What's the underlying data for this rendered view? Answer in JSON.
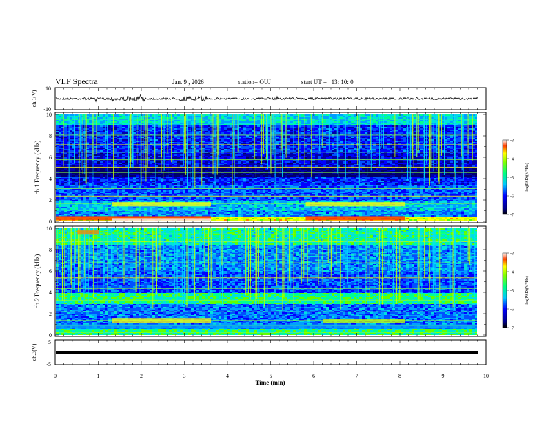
{
  "header": {
    "title": "VLF Spectra",
    "date": "Jan. 9 , 2026",
    "station": "station= OUJ",
    "start_ut": "start UT =   13: 10: 0"
  },
  "chart_data": [
    {
      "type": "line",
      "panel": "ch1-waveform",
      "ylabel": "ch.1(V)",
      "ylim": [
        -10,
        10
      ],
      "yticks": [
        "10",
        "-10"
      ],
      "note": "broadband waveform trace near 0 V with small bursts"
    },
    {
      "type": "heatmap",
      "panel": "ch1-spectrogram",
      "ylabel": "ch.1 Frequency (kHz)",
      "ylim": [
        0,
        10
      ],
      "yticks": [
        "0",
        "2",
        "4",
        "6",
        "8",
        "10"
      ],
      "colorbar": {
        "label": "log(PSD)(V²/Hz)",
        "range": [
          -7,
          -3
        ],
        "ticks": [
          "-3",
          "-4",
          "-5",
          "-6",
          "-7"
        ]
      },
      "bands_khz": [
        0.3,
        1.5,
        4.5,
        6.0,
        7.0,
        9.5
      ]
    },
    {
      "type": "heatmap",
      "panel": "ch2-spectrogram",
      "ylabel": "ch.2 Frequency (kHz)",
      "ylim": [
        0,
        10
      ],
      "yticks": [
        "0",
        "2",
        "4",
        "6",
        "8",
        "10"
      ],
      "colorbar": {
        "label": "log(PSD)(V²/Hz)",
        "range": [
          -7,
          -3
        ],
        "ticks": [
          "-3",
          "-4",
          "-5",
          "-6",
          "-7"
        ]
      },
      "bands_khz": [
        0.3,
        1.3,
        3.5,
        6.8,
        9.5
      ]
    },
    {
      "type": "line",
      "panel": "ch3-waveform",
      "ylabel": "ch.3(V)",
      "ylim": [
        -5,
        5
      ],
      "yticks": [
        "5",
        "-5"
      ],
      "note": "near-constant level around -1 V"
    }
  ],
  "xaxis": {
    "label": "Time (min)",
    "range": [
      0,
      10
    ],
    "ticks": [
      "0",
      "1",
      "2",
      "3",
      "4",
      "5",
      "6",
      "7",
      "8",
      "9",
      "10"
    ]
  },
  "colors": {
    "frame": "#000000",
    "background": "#ffffff"
  }
}
